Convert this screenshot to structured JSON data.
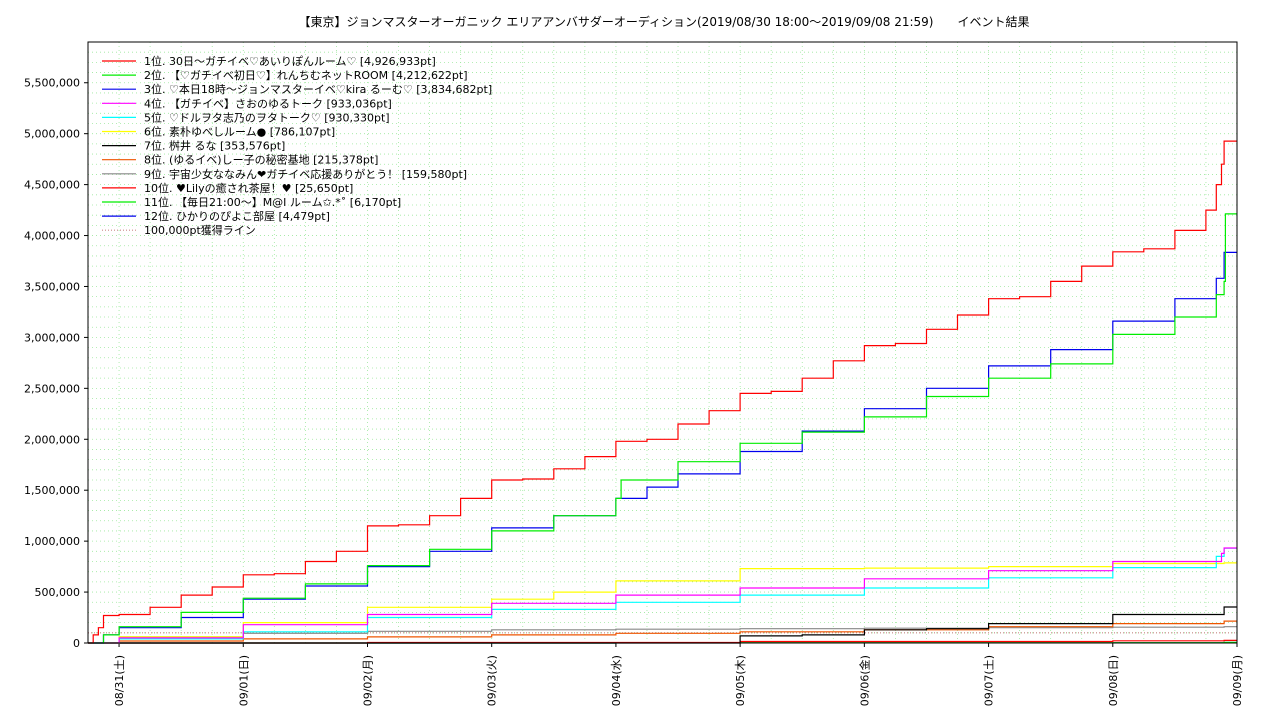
{
  "chart_data": {
    "type": "line",
    "title": "【東京】ジョンマスターオーガニック エリアアンバサダーオーディション(2019/08/30 18:00〜2019/09/08 21:59)　　イベント結果",
    "xlabel": "",
    "ylabel": "",
    "x_start": "2019-08-30T18:00",
    "x_end": "2019-09-09T00:00",
    "x_ticks": [
      {
        "label": "08/31(土)",
        "t": "2019-08-31T00:00"
      },
      {
        "label": "09/01(日)",
        "t": "2019-09-01T00:00"
      },
      {
        "label": "09/02(月)",
        "t": "2019-09-02T00:00"
      },
      {
        "label": "09/03(火)",
        "t": "2019-09-03T00:00"
      },
      {
        "label": "09/04(水)",
        "t": "2019-09-04T00:00"
      },
      {
        "label": "09/05(木)",
        "t": "2019-09-05T00:00"
      },
      {
        "label": "09/06(金)",
        "t": "2019-09-06T00:00"
      },
      {
        "label": "09/07(土)",
        "t": "2019-09-07T00:00"
      },
      {
        "label": "09/08(日)",
        "t": "2019-09-08T00:00"
      },
      {
        "label": "09/09(月)",
        "t": "2019-09-09T00:00"
      }
    ],
    "ylim": [
      0,
      5900000
    ],
    "y_ticks": [
      {
        "label": "0",
        "v": 0
      },
      {
        "label": "500,000",
        "v": 500000
      },
      {
        "label": "1,000,000",
        "v": 1000000
      },
      {
        "label": "1,500,000",
        "v": 1500000
      },
      {
        "label": "2,000,000",
        "v": 2000000
      },
      {
        "label": "2,500,000",
        "v": 2500000
      },
      {
        "label": "3,000,000",
        "v": 3000000
      },
      {
        "label": "3,500,000",
        "v": 3500000
      },
      {
        "label": "4,000,000",
        "v": 4000000
      },
      {
        "label": "4,500,000",
        "v": 4500000
      },
      {
        "label": "5,000,000",
        "v": 5000000
      },
      {
        "label": "5,500,000",
        "v": 5500000
      }
    ],
    "grid": true,
    "legend_position": "top-left",
    "series": [
      {
        "name": "1位. 30日〜ガチイベ♡あいりぽんルーム♡ [4,926,933pt]",
        "color": "#ff0000",
        "dash": "",
        "points": [
          [
            "2019-08-30T18:00",
            0
          ],
          [
            "2019-08-30T19:00",
            80000
          ],
          [
            "2019-08-30T20:00",
            150000
          ],
          [
            "2019-08-30T21:00",
            270000
          ],
          [
            "2019-08-31T00:00",
            280000
          ],
          [
            "2019-08-31T06:00",
            350000
          ],
          [
            "2019-08-31T12:00",
            470000
          ],
          [
            "2019-08-31T18:00",
            550000
          ],
          [
            "2019-09-01T00:00",
            670000
          ],
          [
            "2019-09-01T06:00",
            680000
          ],
          [
            "2019-09-01T12:00",
            800000
          ],
          [
            "2019-09-01T18:00",
            900000
          ],
          [
            "2019-09-02T00:00",
            1150000
          ],
          [
            "2019-09-02T06:00",
            1160000
          ],
          [
            "2019-09-02T12:00",
            1250000
          ],
          [
            "2019-09-02T18:00",
            1420000
          ],
          [
            "2019-09-03T00:00",
            1600000
          ],
          [
            "2019-09-03T06:00",
            1610000
          ],
          [
            "2019-09-03T12:00",
            1710000
          ],
          [
            "2019-09-03T18:00",
            1830000
          ],
          [
            "2019-09-04T00:00",
            1980000
          ],
          [
            "2019-09-04T06:00",
            2000000
          ],
          [
            "2019-09-04T12:00",
            2150000
          ],
          [
            "2019-09-04T18:00",
            2280000
          ],
          [
            "2019-09-05T00:00",
            2450000
          ],
          [
            "2019-09-05T06:00",
            2470000
          ],
          [
            "2019-09-05T12:00",
            2600000
          ],
          [
            "2019-09-05T18:00",
            2770000
          ],
          [
            "2019-09-06T00:00",
            2920000
          ],
          [
            "2019-09-06T06:00",
            2940000
          ],
          [
            "2019-09-06T12:00",
            3080000
          ],
          [
            "2019-09-06T18:00",
            3220000
          ],
          [
            "2019-09-07T00:00",
            3380000
          ],
          [
            "2019-09-07T06:00",
            3400000
          ],
          [
            "2019-09-07T12:00",
            3550000
          ],
          [
            "2019-09-07T18:00",
            3700000
          ],
          [
            "2019-09-08T00:00",
            3840000
          ],
          [
            "2019-09-08T06:00",
            3870000
          ],
          [
            "2019-09-08T12:00",
            4050000
          ],
          [
            "2019-09-08T18:00",
            4250000
          ],
          [
            "2019-09-08T20:00",
            4500000
          ],
          [
            "2019-09-08T21:00",
            4700000
          ],
          [
            "2019-09-08T21:30",
            4926933
          ],
          [
            "2019-09-09T00:00",
            4926933
          ]
        ]
      },
      {
        "name": "2位. 【♡ガチイベ初日♡】れんちむネットROOM [4,212,622pt]",
        "color": "#00ee00",
        "dash": "",
        "points": [
          [
            "2019-08-30T18:00",
            0
          ],
          [
            "2019-08-30T21:00",
            80000
          ],
          [
            "2019-08-31T00:00",
            160000
          ],
          [
            "2019-08-31T12:00",
            300000
          ],
          [
            "2019-09-01T00:00",
            440000
          ],
          [
            "2019-09-01T12:00",
            580000
          ],
          [
            "2019-09-02T00:00",
            760000
          ],
          [
            "2019-09-02T12:00",
            920000
          ],
          [
            "2019-09-03T00:00",
            1100000
          ],
          [
            "2019-09-03T12:00",
            1250000
          ],
          [
            "2019-09-04T00:00",
            1420000
          ],
          [
            "2019-09-04T01:00",
            1600000
          ],
          [
            "2019-09-04T12:00",
            1780000
          ],
          [
            "2019-09-05T00:00",
            1960000
          ],
          [
            "2019-09-05T12:00",
            2070000
          ],
          [
            "2019-09-06T00:00",
            2220000
          ],
          [
            "2019-09-06T12:00",
            2420000
          ],
          [
            "2019-09-07T00:00",
            2600000
          ],
          [
            "2019-09-07T12:00",
            2740000
          ],
          [
            "2019-09-08T00:00",
            3030000
          ],
          [
            "2019-09-08T12:00",
            3200000
          ],
          [
            "2019-09-08T20:00",
            3420000
          ],
          [
            "2019-09-08T21:30",
            3550000
          ],
          [
            "2019-09-08T21:45",
            4212622
          ],
          [
            "2019-09-09T00:00",
            4212622
          ]
        ]
      },
      {
        "name": "3位. ♡本日18時〜ジョンマスターイベ♡kira るーむ♡ [3,834,682pt]",
        "color": "#0000ee",
        "dash": "",
        "points": [
          [
            "2019-08-30T18:00",
            0
          ],
          [
            "2019-08-30T21:00",
            80000
          ],
          [
            "2019-08-31T00:00",
            150000
          ],
          [
            "2019-08-31T12:00",
            250000
          ],
          [
            "2019-09-01T00:00",
            430000
          ],
          [
            "2019-09-01T12:00",
            560000
          ],
          [
            "2019-09-02T00:00",
            750000
          ],
          [
            "2019-09-02T12:00",
            900000
          ],
          [
            "2019-09-03T00:00",
            1130000
          ],
          [
            "2019-09-03T12:00",
            1250000
          ],
          [
            "2019-09-04T00:00",
            1420000
          ],
          [
            "2019-09-04T06:00",
            1530000
          ],
          [
            "2019-09-04T12:00",
            1660000
          ],
          [
            "2019-09-05T00:00",
            1880000
          ],
          [
            "2019-09-05T12:00",
            2080000
          ],
          [
            "2019-09-06T00:00",
            2300000
          ],
          [
            "2019-09-06T12:00",
            2500000
          ],
          [
            "2019-09-07T00:00",
            2720000
          ],
          [
            "2019-09-07T12:00",
            2880000
          ],
          [
            "2019-09-08T00:00",
            3160000
          ],
          [
            "2019-09-08T12:00",
            3380000
          ],
          [
            "2019-09-08T20:00",
            3580000
          ],
          [
            "2019-09-08T21:30",
            3834682
          ],
          [
            "2019-09-09T00:00",
            3834682
          ]
        ]
      },
      {
        "name": "4位. 【ガチイベ】さおのゆるトーク [933,036pt]",
        "color": "#ff00ff",
        "dash": "",
        "points": [
          [
            "2019-08-30T18:00",
            0
          ],
          [
            "2019-08-31T00:00",
            50000
          ],
          [
            "2019-09-01T00:00",
            180000
          ],
          [
            "2019-09-02T00:00",
            280000
          ],
          [
            "2019-09-03T00:00",
            390000
          ],
          [
            "2019-09-04T00:00",
            470000
          ],
          [
            "2019-09-05T00:00",
            540000
          ],
          [
            "2019-09-06T00:00",
            630000
          ],
          [
            "2019-09-07T00:00",
            710000
          ],
          [
            "2019-09-08T00:00",
            800000
          ],
          [
            "2019-09-08T21:00",
            880000
          ],
          [
            "2019-09-08T21:30",
            933036
          ],
          [
            "2019-09-09T00:00",
            933036
          ]
        ]
      },
      {
        "name": "5位. ♡ドルヲタ志乃のヲタトーク♡ [930,330pt]",
        "color": "#00ffff",
        "dash": "",
        "points": [
          [
            "2019-08-30T18:00",
            0
          ],
          [
            "2019-08-31T00:00",
            40000
          ],
          [
            "2019-09-01T00:00",
            110000
          ],
          [
            "2019-09-02T00:00",
            250000
          ],
          [
            "2019-09-03T00:00",
            330000
          ],
          [
            "2019-09-04T00:00",
            400000
          ],
          [
            "2019-09-05T00:00",
            470000
          ],
          [
            "2019-09-06T00:00",
            540000
          ],
          [
            "2019-09-07T00:00",
            640000
          ],
          [
            "2019-09-08T00:00",
            740000
          ],
          [
            "2019-09-08T20:00",
            850000
          ],
          [
            "2019-09-08T21:30",
            930330
          ],
          [
            "2019-09-09T00:00",
            930330
          ]
        ]
      },
      {
        "name": "6位. 素朴ゆべしルーム● [786,107pt]",
        "color": "#ffff00",
        "dash": "",
        "points": [
          [
            "2019-08-30T18:00",
            0
          ],
          [
            "2019-08-31T00:00",
            60000
          ],
          [
            "2019-09-01T00:00",
            200000
          ],
          [
            "2019-09-02T00:00",
            350000
          ],
          [
            "2019-09-03T00:00",
            430000
          ],
          [
            "2019-09-03T12:00",
            500000
          ],
          [
            "2019-09-04T00:00",
            610000
          ],
          [
            "2019-09-05T00:00",
            730000
          ],
          [
            "2019-09-06T00:00",
            735000
          ],
          [
            "2019-09-07T00:00",
            750000
          ],
          [
            "2019-09-08T00:00",
            780000
          ],
          [
            "2019-09-08T21:30",
            786107
          ],
          [
            "2019-09-09T00:00",
            786107
          ]
        ]
      },
      {
        "name": "7位. 桝井 るな [353,576pt]",
        "color": "#000000",
        "dash": "",
        "points": [
          [
            "2019-08-30T18:00",
            0
          ],
          [
            "2019-09-04T18:00",
            0
          ],
          [
            "2019-09-05T00:00",
            70000
          ],
          [
            "2019-09-05T12:00",
            80000
          ],
          [
            "2019-09-06T00:00",
            130000
          ],
          [
            "2019-09-06T12:00",
            140000
          ],
          [
            "2019-09-07T00:00",
            190000
          ],
          [
            "2019-09-08T00:00",
            280000
          ],
          [
            "2019-09-08T21:30",
            353576
          ],
          [
            "2019-09-09T00:00",
            353576
          ]
        ]
      },
      {
        "name": "8位. (ゆるイベ)しー子の秘密基地 [215,378pt]",
        "color": "#ee5500",
        "dash": "",
        "points": [
          [
            "2019-08-30T18:00",
            0
          ],
          [
            "2019-08-31T00:00",
            20000
          ],
          [
            "2019-09-01T00:00",
            40000
          ],
          [
            "2019-09-02T00:00",
            60000
          ],
          [
            "2019-09-03T00:00",
            80000
          ],
          [
            "2019-09-04T00:00",
            95000
          ],
          [
            "2019-09-05T00:00",
            110000
          ],
          [
            "2019-09-06T00:00",
            130000
          ],
          [
            "2019-09-07T00:00",
            160000
          ],
          [
            "2019-09-08T00:00",
            190000
          ],
          [
            "2019-09-08T21:30",
            215378
          ],
          [
            "2019-09-09T00:00",
            215378
          ]
        ]
      },
      {
        "name": "9位. 宇宙少女ななみん❤ガチイベ応援ありがとう！ [159,580pt]",
        "color": "#888888",
        "dash": "",
        "points": [
          [
            "2019-08-30T18:00",
            0
          ],
          [
            "2019-08-31T00:00",
            60000
          ],
          [
            "2019-09-01T00:00",
            95000
          ],
          [
            "2019-09-02T00:00",
            115000
          ],
          [
            "2019-09-03T00:00",
            130000
          ],
          [
            "2019-09-04T00:00",
            135000
          ],
          [
            "2019-09-05T00:00",
            140000
          ],
          [
            "2019-09-06T00:00",
            145000
          ],
          [
            "2019-09-07T00:00",
            150000
          ],
          [
            "2019-09-08T00:00",
            155000
          ],
          [
            "2019-09-08T21:30",
            159580
          ],
          [
            "2019-09-09T00:00",
            159580
          ]
        ]
      },
      {
        "name": "10位. ♥Lilyの癒され茶屋！♥ [25,650pt]",
        "color": "#ff0000",
        "dash": "",
        "points": [
          [
            "2019-08-30T18:00",
            0
          ],
          [
            "2019-09-02T00:00",
            5000
          ],
          [
            "2019-09-05T00:00",
            15000
          ],
          [
            "2019-09-08T00:00",
            22000
          ],
          [
            "2019-09-08T21:30",
            25650
          ],
          [
            "2019-09-09T00:00",
            25650
          ]
        ]
      },
      {
        "name": "11位. 【毎日21:00〜】M@I ルーム✩.*˚ [6,170pt]",
        "color": "#00ee00",
        "dash": "",
        "points": [
          [
            "2019-08-30T18:00",
            0
          ],
          [
            "2019-09-04T00:00",
            3000
          ],
          [
            "2019-09-08T21:30",
            6170
          ],
          [
            "2019-09-09T00:00",
            6170
          ]
        ]
      },
      {
        "name": "12位. ひかりのぴよこ部屋 [4,479pt]",
        "color": "#0000ee",
        "dash": "",
        "points": [
          [
            "2019-08-30T18:00",
            0
          ],
          [
            "2019-09-04T00:00",
            2000
          ],
          [
            "2019-09-08T21:30",
            4479
          ],
          [
            "2019-09-09T00:00",
            4479
          ]
        ]
      },
      {
        "name": "100,000pt獲得ライン",
        "color": "#cc8888",
        "dash": "1,2",
        "points": [
          [
            "2019-08-30T18:00",
            100000
          ],
          [
            "2019-09-09T00:00",
            100000
          ]
        ]
      }
    ]
  }
}
